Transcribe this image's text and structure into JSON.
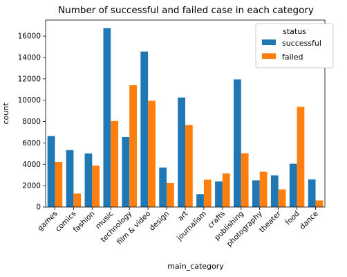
{
  "chart_data": {
    "type": "bar",
    "title": "Number of successful and failed case in each category",
    "xlabel": "main_category",
    "ylabel": "count",
    "ylim": [
      0,
      17500
    ],
    "yticks": [
      0,
      2000,
      4000,
      6000,
      8000,
      10000,
      12000,
      14000,
      16000
    ],
    "grid": false,
    "legend": {
      "title": "status",
      "placement": "upper-right"
    },
    "categories": [
      "games",
      "comics",
      "fashion",
      "music",
      "technology",
      "film & video",
      "design",
      "art",
      "journalism",
      "crafts",
      "publishing",
      "photography",
      "theater",
      "food",
      "dance"
    ],
    "series": [
      {
        "name": "successful",
        "color": "#1f77b4",
        "values": [
          6650,
          5330,
          5020,
          16750,
          6550,
          14550,
          3700,
          10250,
          1210,
          2400,
          11950,
          2500,
          2960,
          4050,
          2580
        ]
      },
      {
        "name": "failed",
        "color": "#ff7f0e",
        "values": [
          4220,
          1270,
          3870,
          8050,
          11400,
          9950,
          2270,
          7680,
          2560,
          3150,
          5030,
          3320,
          1650,
          9380,
          620
        ]
      }
    ]
  }
}
